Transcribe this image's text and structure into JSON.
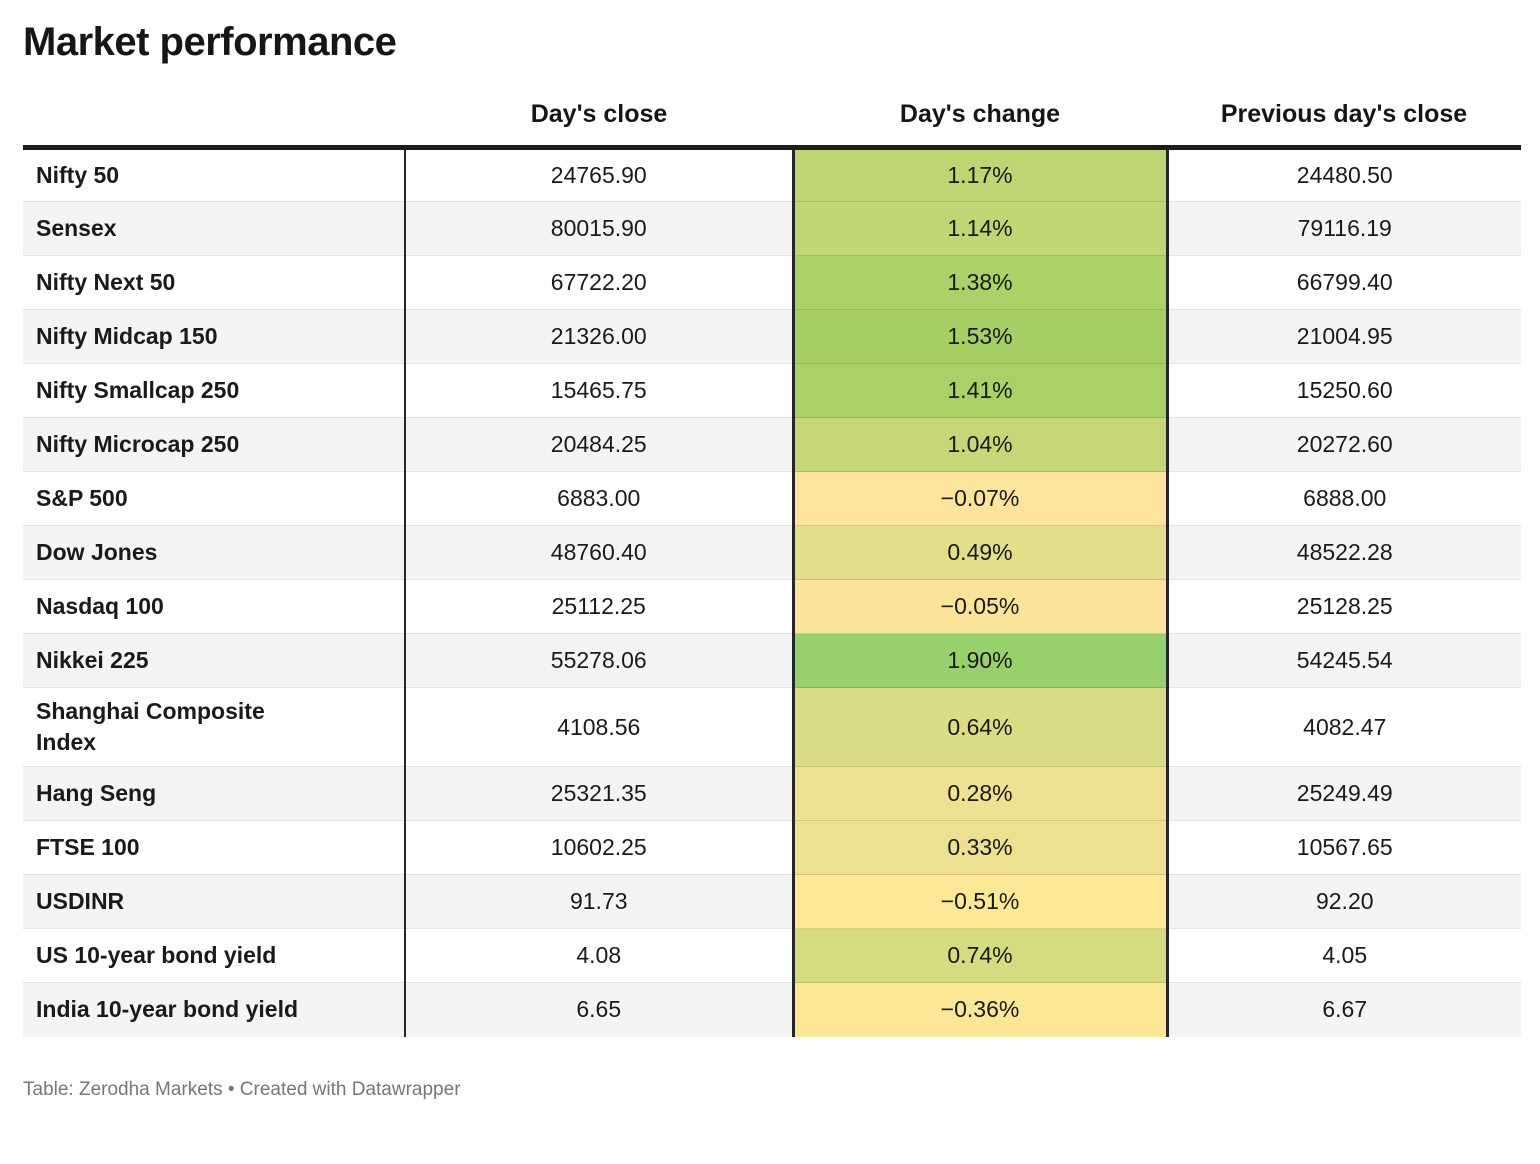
{
  "title": "Market performance",
  "columns": {
    "label": "",
    "close": "Day's close",
    "change": "Day's change",
    "prev": "Previous day's close"
  },
  "footer": "Table: Zerodha Markets • Created with Datawrapper",
  "colors": {
    "top_border": "#1d1d1d",
    "column_divider": "#262626",
    "row_stripe": "#f4f4f4",
    "row_divider": "#e3e3e3",
    "footer_text": "#767676",
    "positive_strong_green": "#97d06c",
    "negative_yellow": "#fde49c"
  },
  "rows": [
    {
      "label": "Nifty 50",
      "close": "24765.90",
      "change": "1.17%",
      "prev": "24480.50",
      "bg": "#bdd673"
    },
    {
      "label": "Sensex",
      "close": "80015.90",
      "change": "1.14%",
      "prev": "79116.19",
      "bg": "#bed674"
    },
    {
      "label": "Nifty Next 50",
      "close": "67722.20",
      "change": "1.38%",
      "prev": "66799.40",
      "bg": "#abd167"
    },
    {
      "label": "Nifty Midcap 150",
      "close": "21326.00",
      "change": "1.53%",
      "prev": "21004.95",
      "bg": "#a5cf64"
    },
    {
      "label": "Nifty Smallcap 250",
      "close": "15465.75",
      "change": "1.41%",
      "prev": "15250.60",
      "bg": "#aad167"
    },
    {
      "label": "Nifty Microcap 250",
      "close": "20484.25",
      "change": "1.04%",
      "prev": "20272.60",
      "bg": "#c5d779"
    },
    {
      "label": "S&P 500",
      "close": "6883.00",
      "change": "−0.07%",
      "prev": "6888.00",
      "bg": "#fde49c"
    },
    {
      "label": "Dow Jones",
      "close": "48760.40",
      "change": "0.49%",
      "prev": "48522.28",
      "bg": "#e2de8a"
    },
    {
      "label": "Nasdaq 100",
      "close": "25112.25",
      "change": "−0.05%",
      "prev": "25128.25",
      "bg": "#fce39a"
    },
    {
      "label": "Nikkei 225",
      "close": "55278.06",
      "change": "1.90%",
      "prev": "54245.54",
      "bg": "#97d06c"
    },
    {
      "label": "Shanghai Composite Index",
      "close": "4108.56",
      "change": "0.64%",
      "prev": "4082.47",
      "bg": "#dcdc86"
    },
    {
      "label": "Hang Seng",
      "close": "25321.35",
      "change": "0.28%",
      "prev": "25249.49",
      "bg": "#efe192"
    },
    {
      "label": "FTSE 100",
      "close": "10602.25",
      "change": "0.33%",
      "prev": "10567.65",
      "bg": "#ede08f"
    },
    {
      "label": "USDINR",
      "close": "91.73",
      "change": "−0.51%",
      "prev": "92.20",
      "bg": "#fde898"
    },
    {
      "label": "US 10-year bond yield",
      "close": "4.08",
      "change": "0.74%",
      "prev": "4.05",
      "bg": "#d5db81"
    },
    {
      "label": "India 10-year bond yield",
      "close": "6.65",
      "change": "−0.36%",
      "prev": "6.67",
      "bg": "#fce797"
    }
  ],
  "chart_data": {
    "type": "table",
    "title": "Market performance",
    "columns": [
      "",
      "Day's close",
      "Day's change",
      "Previous day's close"
    ],
    "rows": [
      [
        "Nifty 50",
        24765.9,
        "1.17%",
        24480.5
      ],
      [
        "Sensex",
        80015.9,
        "1.14%",
        79116.19
      ],
      [
        "Nifty Next 50",
        67722.2,
        "1.38%",
        66799.4
      ],
      [
        "Nifty Midcap 150",
        21326.0,
        "1.53%",
        21004.95
      ],
      [
        "Nifty Smallcap 250",
        15465.75,
        "1.41%",
        15250.6
      ],
      [
        "Nifty Microcap 250",
        20484.25,
        "1.04%",
        20272.6
      ],
      [
        "S&P 500",
        6883.0,
        "−0.07%",
        6888.0
      ],
      [
        "Dow Jones",
        48760.4,
        "0.49%",
        48522.28
      ],
      [
        "Nasdaq 100",
        25112.25,
        "−0.05%",
        25128.25
      ],
      [
        "Nikkei 225",
        55278.06,
        "1.90%",
        54245.54
      ],
      [
        "Shanghai Composite Index",
        4108.56,
        "0.64%",
        4082.47
      ],
      [
        "Hang Seng",
        25321.35,
        "0.28%",
        25249.49
      ],
      [
        "FTSE 100",
        10602.25,
        "0.33%",
        10567.65
      ],
      [
        "USDINR",
        91.73,
        "−0.51%",
        92.2
      ],
      [
        "US 10-year bond yield",
        4.08,
        "0.74%",
        4.05
      ],
      [
        "India 10-year bond yield",
        6.65,
        "−0.36%",
        6.67
      ]
    ],
    "notes": "Day's change column is heat-colored: strong green ≈ +1.9%, pale yellow ≈ negative values",
    "source": "Table: Zerodha Markets • Created with Datawrapper"
  }
}
